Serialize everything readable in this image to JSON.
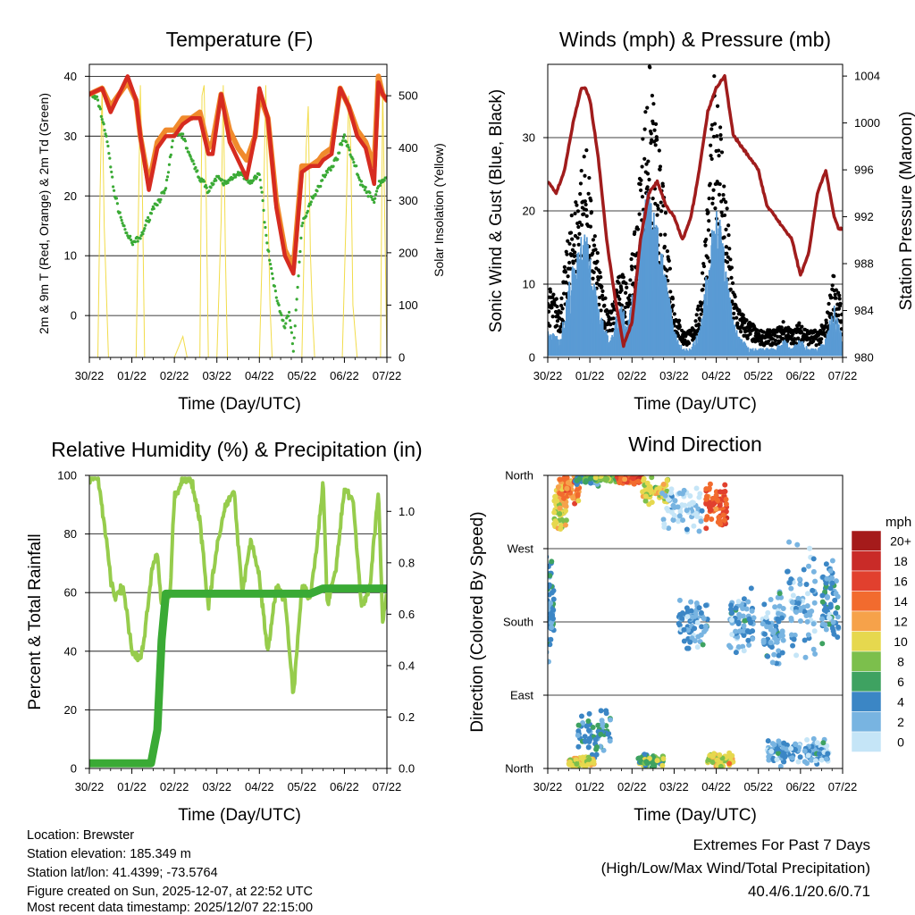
{
  "x_ticks": [
    "30/22",
    "01/22",
    "02/22",
    "03/22",
    "04/22",
    "05/22",
    "06/22",
    "07/22"
  ],
  "colors": {
    "t2m": "#d62b20",
    "t9m": "#f08a2c",
    "td": "#3aaa35",
    "solar": "#f2dc4a",
    "gust": "#000000",
    "wind": "#5a9bd4",
    "pressure": "#a01c1c",
    "rh": "#96cc4c",
    "precip": "#3aaa35"
  },
  "chart_data": [
    {
      "id": "temperature",
      "type": "line",
      "title": "Temperature (F)",
      "xlabel": "Time (Day/UTC)",
      "ylabel": "2m & 9m T (Red, Orange) & 2m Td (Green)",
      "y2label": "Solar Insolation (Yellow)",
      "xlim": [
        0,
        7
      ],
      "ylim": [
        -7,
        42
      ],
      "y2lim": [
        0,
        560
      ],
      "yticks": [
        0,
        10,
        20,
        30,
        40
      ],
      "y2ticks": [
        0,
        100,
        200,
        300,
        400,
        500
      ],
      "series": [
        {
          "name": "2m T",
          "color_key": "t2m",
          "x": [
            0,
            0.3,
            0.5,
            0.7,
            0.9,
            1.1,
            1.2,
            1.4,
            1.6,
            1.8,
            2.0,
            2.2,
            2.4,
            2.6,
            2.8,
            2.9,
            3.1,
            3.3,
            3.5,
            3.7,
            3.9,
            4.0,
            4.2,
            4.4,
            4.6,
            4.8,
            5.0,
            5.2,
            5.4,
            5.5,
            5.7,
            5.9,
            6.1,
            6.3,
            6.5,
            6.7,
            6.8,
            6.9,
            7.0
          ],
          "y": [
            37,
            38,
            34,
            37,
            40,
            36,
            30,
            21,
            28,
            30,
            30,
            32,
            33,
            33,
            27,
            27,
            37,
            29,
            26,
            23,
            30,
            38,
            33,
            18,
            10,
            7,
            24,
            25,
            25,
            26,
            27,
            38,
            35,
            30,
            28,
            22,
            39,
            37,
            36
          ]
        },
        {
          "name": "9m T",
          "color_key": "t9m",
          "x": [
            0,
            0.3,
            0.5,
            0.7,
            0.9,
            1.1,
            1.2,
            1.4,
            1.6,
            1.8,
            2.0,
            2.2,
            2.4,
            2.6,
            2.8,
            2.9,
            3.1,
            3.3,
            3.5,
            3.7,
            3.9,
            4.0,
            4.2,
            4.4,
            4.6,
            4.8,
            5.0,
            5.2,
            5.4,
            5.5,
            5.7,
            5.9,
            6.1,
            6.3,
            6.5,
            6.7,
            6.8,
            6.9,
            7.0
          ],
          "y": [
            37,
            38,
            35,
            37,
            39,
            36,
            30,
            22,
            29,
            31,
            31,
            33,
            33,
            34,
            28,
            29,
            37,
            31,
            28,
            26,
            30,
            37,
            33,
            19,
            11,
            8,
            25,
            25,
            26,
            27,
            28,
            38,
            35,
            31,
            29,
            25,
            40,
            37,
            36
          ]
        },
        {
          "name": "2m Td",
          "color_key": "td",
          "x": [
            0,
            0.2,
            0.4,
            0.6,
            0.8,
            1.0,
            1.2,
            1.5,
            1.8,
            2.0,
            2.2,
            2.4,
            2.6,
            2.8,
            3.0,
            3.2,
            3.5,
            3.8,
            4.0,
            4.2,
            4.4,
            4.6,
            4.7,
            4.8,
            5.0,
            5.2,
            5.5,
            5.8,
            6.0,
            6.2,
            6.4,
            6.6,
            6.7,
            6.8,
            7.0
          ],
          "y": [
            37,
            36,
            30,
            20,
            15,
            12,
            13,
            18,
            21,
            31,
            30,
            26,
            23,
            21,
            23,
            22,
            24,
            22,
            24,
            11,
            3,
            -2,
            1,
            -6,
            15,
            19,
            23,
            26,
            30,
            26,
            22,
            20,
            19,
            22,
            23
          ]
        },
        {
          "name": "Solar",
          "axis": "y2",
          "color_key": "solar",
          "x": [
            0.1,
            0.2,
            0.25,
            0.3,
            0.35,
            0.45,
            1.1,
            1.15,
            1.2,
            1.25,
            1.3,
            1.4,
            2.0,
            2.1,
            2.2,
            2.3,
            2.5,
            2.6,
            2.65,
            2.7,
            2.75,
            2.8,
            3.0,
            3.1,
            3.15,
            3.2,
            3.25,
            3.4,
            4.0,
            4.1,
            4.15,
            4.2,
            4.25,
            4.3,
            5.0,
            5.1,
            5.15,
            5.2,
            5.25,
            5.3,
            5.95,
            6.05,
            6.1,
            6.15,
            6.2,
            6.3,
            6.85,
            6.9,
            7.0
          ],
          "y": [
            0,
            0,
            300,
            520,
            250,
            0,
            0,
            250,
            520,
            300,
            0,
            0,
            0,
            20,
            40,
            0,
            0,
            0,
            500,
            520,
            300,
            0,
            0,
            260,
            520,
            200,
            0,
            0,
            0,
            300,
            520,
            300,
            100,
            0,
            0,
            400,
            480,
            200,
            80,
            0,
            0,
            300,
            500,
            400,
            100,
            0,
            0,
            520,
            0
          ]
        }
      ]
    },
    {
      "id": "winds",
      "type": "scatter+line",
      "title": "Winds (mph) & Pressure (mb)",
      "xlabel": "Time (Day/UTC)",
      "ylabel": "Sonic Wind & Gust (Blue, Black)",
      "y2label": "Station Pressure (Maroon)",
      "xlim": [
        0,
        7
      ],
      "ylim": [
        0,
        40
      ],
      "y2lim": [
        980,
        1005
      ],
      "yticks": [
        0,
        10,
        20,
        30
      ],
      "y2ticks": [
        980,
        984,
        988,
        992,
        996,
        1000,
        1004
      ],
      "series": [
        {
          "name": "Gust",
          "color_key": "gust",
          "x": [
            0,
            0.3,
            0.5,
            0.7,
            0.9,
            1.1,
            1.3,
            1.5,
            1.7,
            1.9,
            2.1,
            2.2,
            2.4,
            2.6,
            2.8,
            3.0,
            3.2,
            3.4,
            3.6,
            3.8,
            4.0,
            4.2,
            4.4,
            4.6,
            4.8,
            5.0,
            5.2,
            5.4,
            5.6,
            5.8,
            6.0,
            6.2,
            6.4,
            6.6,
            6.8,
            7.0
          ],
          "y": [
            8,
            6,
            14,
            19,
            24,
            14,
            8,
            5,
            10,
            8,
            15,
            22,
            33,
            25,
            16,
            6,
            3,
            3,
            6,
            18,
            35,
            20,
            8,
            5,
            4,
            3,
            3,
            3,
            4,
            3,
            4,
            3,
            3,
            4,
            10,
            5
          ]
        },
        {
          "name": "Sonic Wind",
          "color_key": "wind",
          "x": [
            0,
            0.3,
            0.5,
            0.7,
            0.9,
            1.1,
            1.3,
            1.5,
            1.7,
            1.9,
            2.1,
            2.2,
            2.4,
            2.6,
            2.8,
            3.0,
            3.2,
            3.4,
            3.6,
            3.8,
            4.0,
            4.2,
            4.4,
            4.6,
            4.8,
            5.0,
            5.2,
            5.4,
            5.6,
            5.8,
            6.0,
            6.2,
            6.4,
            6.6,
            6.8,
            7.0
          ],
          "y": [
            3,
            2,
            8,
            12,
            14,
            8,
            4,
            2,
            6,
            4,
            9,
            15,
            18,
            14,
            9,
            3,
            1,
            1,
            3,
            10,
            18,
            11,
            4,
            2,
            1,
            1,
            1,
            1,
            2,
            1,
            2,
            1,
            1,
            2,
            6,
            2
          ]
        },
        {
          "name": "Pressure",
          "axis": "y2",
          "color_key": "pressure",
          "x": [
            0,
            0.2,
            0.4,
            0.6,
            0.8,
            0.9,
            1.0,
            1.2,
            1.4,
            1.6,
            1.8,
            2.0,
            2.2,
            2.4,
            2.6,
            2.8,
            3.0,
            3.2,
            3.4,
            3.6,
            3.8,
            4.0,
            4.2,
            4.4,
            4.6,
            4.8,
            5.0,
            5.2,
            5.4,
            5.6,
            5.8,
            6.0,
            6.2,
            6.4,
            6.6,
            6.8,
            6.9,
            7.0
          ],
          "y": [
            995,
            994,
            996,
            1000,
            1003,
            1003,
            1002,
            997,
            990,
            985,
            981,
            983,
            990,
            994,
            995,
            993,
            992,
            990,
            992,
            996,
            1001,
            1003,
            1004,
            999,
            998,
            997,
            996,
            993,
            992,
            991,
            990,
            987,
            989,
            994,
            996,
            992,
            991,
            991
          ]
        }
      ]
    },
    {
      "id": "humidity",
      "type": "line",
      "title": "Relative Humidity (%) & Precipitation (in)",
      "xlabel": "Time (Day/UTC)",
      "ylabel": "Percent & Total Rainfall",
      "xlim": [
        0,
        7
      ],
      "ylim": [
        0,
        100
      ],
      "y2lim": [
        0,
        1.14
      ],
      "yticks": [
        0,
        20,
        40,
        60,
        80,
        100
      ],
      "y2ticks": [
        0.0,
        0.2,
        0.4,
        0.6,
        0.8,
        1.0
      ],
      "series": [
        {
          "name": "Relative Humidity",
          "color_key": "rh",
          "x": [
            0,
            0.2,
            0.4,
            0.5,
            0.6,
            0.8,
            1.0,
            1.2,
            1.3,
            1.5,
            1.6,
            1.7,
            1.9,
            2.0,
            2.2,
            2.4,
            2.6,
            2.8,
            3.0,
            3.2,
            3.4,
            3.6,
            3.8,
            4.0,
            4.2,
            4.4,
            4.6,
            4.8,
            5.0,
            5.2,
            5.4,
            5.5,
            5.6,
            5.8,
            6.0,
            6.2,
            6.4,
            6.6,
            6.8,
            6.9,
            7.0
          ],
          "y": [
            99,
            99,
            78,
            65,
            58,
            62,
            40,
            37,
            46,
            70,
            73,
            55,
            60,
            92,
            99,
            98,
            85,
            55,
            75,
            90,
            95,
            60,
            78,
            65,
            40,
            62,
            58,
            25,
            62,
            58,
            82,
            97,
            55,
            68,
            95,
            92,
            55,
            62,
            95,
            50,
            60
          ]
        },
        {
          "name": "Total Precipitation",
          "axis": "y2",
          "color_key": "precip",
          "x": [
            0,
            1.45,
            1.6,
            1.7,
            1.8,
            2.2,
            5.0,
            5.2,
            5.5,
            6.0,
            7.0
          ],
          "y": [
            0.02,
            0.02,
            0.15,
            0.5,
            0.68,
            0.68,
            0.68,
            0.68,
            0.7,
            0.7,
            0.7
          ]
        }
      ]
    },
    {
      "id": "direction",
      "type": "scatter",
      "title": "Wind Direction",
      "xlabel": "Time (Day/UTC)",
      "ylabel": "Direction (Colored By Speed)",
      "xlim": [
        0,
        7
      ],
      "ylim": [
        0,
        360
      ],
      "yticks": [
        0,
        90,
        180,
        270,
        360
      ],
      "yticklabels": [
        "North",
        "East",
        "South",
        "West",
        "North"
      ],
      "legend_title": "mph",
      "legend_labels": [
        "20+",
        "18",
        "16",
        "14",
        "12",
        "10",
        "8",
        "6",
        "4",
        "2",
        "0"
      ],
      "legend_colors": [
        "#a51b1b",
        "#c92b28",
        "#e1402e",
        "#f26b2e",
        "#f6a24a",
        "#e6d84e",
        "#7cbf4c",
        "#3ea261",
        "#3b86c5",
        "#78b4e1",
        "#c5e5f7"
      ],
      "clusters": [
        {
          "x": 0.05,
          "dx": 0.1,
          "y": 200,
          "dy": 80,
          "speed": 4
        },
        {
          "x": 0.3,
          "dx": 0.15,
          "y": 320,
          "dy": 40,
          "speed": 10
        },
        {
          "x": 0.5,
          "dx": 0.25,
          "y": 345,
          "dy": 25,
          "speed": 13
        },
        {
          "x": 0.95,
          "dx": 0.3,
          "y": 355,
          "dy": 10,
          "speed": 5
        },
        {
          "x": 1.5,
          "dx": 0.4,
          "y": 357,
          "dy": 6,
          "speed": 8
        },
        {
          "x": 1.95,
          "dx": 0.3,
          "y": 355,
          "dy": 8,
          "speed": 15
        },
        {
          "x": 2.55,
          "dx": 0.3,
          "y": 340,
          "dy": 20,
          "speed": 10
        },
        {
          "x": 3.2,
          "dx": 0.5,
          "y": 320,
          "dy": 40,
          "speed": 1
        },
        {
          "x": 4.0,
          "dx": 0.25,
          "y": 320,
          "dy": 35,
          "speed": 15
        },
        {
          "x": 3.45,
          "dx": 0.35,
          "y": 180,
          "dy": 40,
          "speed": 3
        },
        {
          "x": 4.6,
          "dx": 0.3,
          "y": 180,
          "dy": 50,
          "speed": 3
        },
        {
          "x": 5.35,
          "dx": 0.25,
          "y": 180,
          "dy": 60,
          "speed": 3
        },
        {
          "x": 6.0,
          "dx": 0.35,
          "y": 200,
          "dy": 90,
          "speed": 2
        },
        {
          "x": 6.7,
          "dx": 0.2,
          "y": 200,
          "dy": 80,
          "speed": 4
        },
        {
          "x": 1.1,
          "dx": 0.4,
          "y": 45,
          "dy": 45,
          "speed": 4
        },
        {
          "x": 0.8,
          "dx": 0.3,
          "y": 8,
          "dy": 8,
          "speed": 10
        },
        {
          "x": 2.45,
          "dx": 0.3,
          "y": 10,
          "dy": 10,
          "speed": 7
        },
        {
          "x": 4.1,
          "dx": 0.3,
          "y": 10,
          "dy": 12,
          "speed": 10
        },
        {
          "x": 5.6,
          "dx": 0.4,
          "y": 20,
          "dy": 20,
          "speed": 3
        },
        {
          "x": 6.4,
          "dx": 0.3,
          "y": 20,
          "dy": 20,
          "speed": 2
        }
      ]
    }
  ],
  "info": {
    "location": "Location: Brewster",
    "elevation": "Station elevation: 185.349 m",
    "latlon": "Station lat/lon: 41.4399; -73.5764",
    "created": "Figure created on Sun, 2025-12-07, at 22:52 UTC",
    "recent": "Most recent data timestamp: 2025/12/07 22:15:00"
  },
  "extremes": {
    "line1": "Extremes For Past 7 Days",
    "line2": "(High/Low/Max Wind/Total Precipitation)",
    "values": "40.4/6.1/20.6/0.71"
  }
}
